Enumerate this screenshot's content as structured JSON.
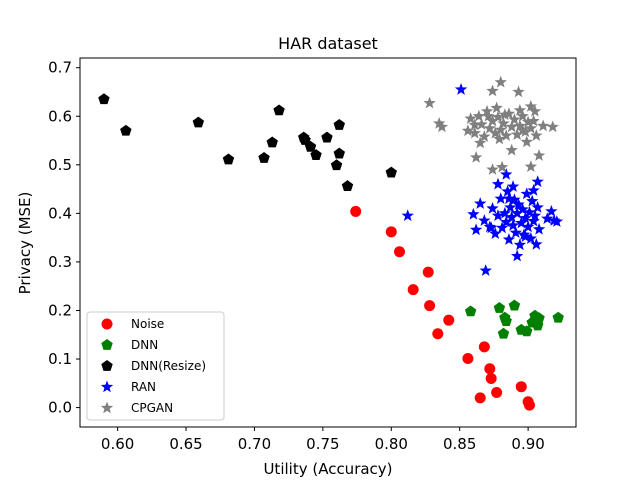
{
  "chart_data": {
    "type": "scatter",
    "title": "HAR dataset",
    "xlabel": "Utility (Accuracy)",
    "ylabel": "Privacy (MSE)",
    "xlim": [
      0.5725,
      0.935
    ],
    "ylim": [
      -0.04,
      0.72
    ],
    "xticks": [
      "0.60",
      "0.65",
      "0.70",
      "0.75",
      "0.80",
      "0.85",
      "0.90"
    ],
    "xtick_values": [
      0.6,
      0.65,
      0.7,
      0.75,
      0.8,
      0.85,
      0.9
    ],
    "yticks": [
      "0.0",
      "0.1",
      "0.2",
      "0.3",
      "0.4",
      "0.5",
      "0.6",
      "0.7"
    ],
    "ytick_values": [
      0.0,
      0.1,
      0.2,
      0.3,
      0.4,
      0.5,
      0.6,
      0.7
    ],
    "grid": false,
    "legend_position": "lower-left",
    "series": [
      {
        "name": "Noise",
        "marker": "circle",
        "color": "#ff0000",
        "points": [
          [
            0.774,
            0.404
          ],
          [
            0.8,
            0.362
          ],
          [
            0.806,
            0.321
          ],
          [
            0.816,
            0.243
          ],
          [
            0.827,
            0.279
          ],
          [
            0.828,
            0.21
          ],
          [
            0.834,
            0.152
          ],
          [
            0.842,
            0.18
          ],
          [
            0.856,
            0.101
          ],
          [
            0.865,
            0.02
          ],
          [
            0.868,
            0.125
          ],
          [
            0.872,
            0.08
          ],
          [
            0.873,
            0.06
          ],
          [
            0.877,
            0.031
          ],
          [
            0.895,
            0.043
          ],
          [
            0.9,
            0.012
          ],
          [
            0.901,
            0.005
          ]
        ]
      },
      {
        "name": "DNN",
        "marker": "pentagon",
        "color": "#008000",
        "points": [
          [
            0.858,
            0.198
          ],
          [
            0.879,
            0.205
          ],
          [
            0.883,
            0.185
          ],
          [
            0.884,
            0.178
          ],
          [
            0.882,
            0.152
          ],
          [
            0.89,
            0.21
          ],
          [
            0.895,
            0.16
          ],
          [
            0.899,
            0.157
          ],
          [
            0.903,
            0.175
          ],
          [
            0.905,
            0.189
          ],
          [
            0.907,
            0.169
          ],
          [
            0.908,
            0.184
          ],
          [
            0.922,
            0.185
          ],
          [
            0.905,
            0.18
          ]
        ]
      },
      {
        "name": "DNN(Resize)",
        "marker": "pentagon",
        "color": "#000000",
        "points": [
          [
            0.59,
            0.635
          ],
          [
            0.606,
            0.57
          ],
          [
            0.659,
            0.587
          ],
          [
            0.681,
            0.511
          ],
          [
            0.707,
            0.514
          ],
          [
            0.713,
            0.546
          ],
          [
            0.718,
            0.612
          ],
          [
            0.736,
            0.556
          ],
          [
            0.737,
            0.551
          ],
          [
            0.741,
            0.537
          ],
          [
            0.745,
            0.52
          ],
          [
            0.753,
            0.556
          ],
          [
            0.76,
            0.499
          ],
          [
            0.762,
            0.582
          ],
          [
            0.762,
            0.523
          ],
          [
            0.768,
            0.456
          ],
          [
            0.8,
            0.484
          ]
        ]
      },
      {
        "name": "RAN",
        "marker": "star",
        "color": "#0000ff",
        "points": [
          [
            0.851,
            0.655
          ],
          [
            0.812,
            0.395
          ],
          [
            0.869,
            0.282
          ],
          [
            0.86,
            0.398
          ],
          [
            0.862,
            0.366
          ],
          [
            0.865,
            0.42
          ],
          [
            0.868,
            0.385
          ],
          [
            0.872,
            0.372
          ],
          [
            0.874,
            0.41
          ],
          [
            0.876,
            0.358
          ],
          [
            0.878,
            0.395
          ],
          [
            0.88,
            0.43
          ],
          [
            0.881,
            0.37
          ],
          [
            0.883,
            0.4
          ],
          [
            0.884,
            0.382
          ],
          [
            0.885,
            0.445
          ],
          [
            0.886,
            0.346
          ],
          [
            0.887,
            0.412
          ],
          [
            0.888,
            0.392
          ],
          [
            0.889,
            0.375
          ],
          [
            0.89,
            0.428
          ],
          [
            0.891,
            0.36
          ],
          [
            0.892,
            0.4
          ],
          [
            0.893,
            0.418
          ],
          [
            0.894,
            0.335
          ],
          [
            0.895,
            0.38
          ],
          [
            0.896,
            0.408
          ],
          [
            0.897,
            0.356
          ],
          [
            0.898,
            0.39
          ],
          [
            0.899,
            0.44
          ],
          [
            0.9,
            0.372
          ],
          [
            0.901,
            0.402
          ],
          [
            0.902,
            0.348
          ],
          [
            0.903,
            0.425
          ],
          [
            0.904,
            0.384
          ],
          [
            0.905,
            0.395
          ],
          [
            0.906,
            0.336
          ],
          [
            0.907,
            0.412
          ],
          [
            0.908,
            0.367
          ],
          [
            0.892,
            0.312
          ],
          [
            0.889,
            0.455
          ],
          [
            0.904,
            0.447
          ],
          [
            0.907,
            0.465
          ],
          [
            0.884,
            0.48
          ],
          [
            0.878,
            0.46
          ],
          [
            0.917,
            0.404
          ],
          [
            0.921,
            0.383
          ],
          [
            0.919,
            0.385
          ],
          [
            0.914,
            0.389
          ],
          [
            0.898,
            0.352
          ],
          [
            0.873,
            0.37
          ],
          [
            0.886,
            0.43
          ]
        ]
      },
      {
        "name": "CPGAN",
        "marker": "star",
        "color": "#808080",
        "points": [
          [
            0.828,
            0.627
          ],
          [
            0.835,
            0.585
          ],
          [
            0.837,
            0.578
          ],
          [
            0.862,
            0.515
          ],
          [
            0.874,
            0.49
          ],
          [
            0.88,
            0.67
          ],
          [
            0.874,
            0.652
          ],
          [
            0.893,
            0.65
          ],
          [
            0.902,
            0.62
          ],
          [
            0.905,
            0.61
          ],
          [
            0.856,
            0.57
          ],
          [
            0.858,
            0.595
          ],
          [
            0.861,
            0.565
          ],
          [
            0.864,
            0.6
          ],
          [
            0.866,
            0.583
          ],
          [
            0.868,
            0.558
          ],
          [
            0.87,
            0.61
          ],
          [
            0.872,
            0.575
          ],
          [
            0.874,
            0.59
          ],
          [
            0.876,
            0.565
          ],
          [
            0.878,
            0.598
          ],
          [
            0.88,
            0.572
          ],
          [
            0.882,
            0.585
          ],
          [
            0.884,
            0.56
          ],
          [
            0.886,
            0.605
          ],
          [
            0.888,
            0.578
          ],
          [
            0.89,
            0.593
          ],
          [
            0.892,
            0.562
          ],
          [
            0.894,
            0.58
          ],
          [
            0.896,
            0.6
          ],
          [
            0.898,
            0.568
          ],
          [
            0.9,
            0.588
          ],
          [
            0.902,
            0.575
          ],
          [
            0.904,
            0.59
          ],
          [
            0.906,
            0.56
          ],
          [
            0.879,
            0.553
          ],
          [
            0.888,
            0.53
          ],
          [
            0.899,
            0.547
          ],
          [
            0.865,
            0.545
          ],
          [
            0.911,
            0.58
          ],
          [
            0.918,
            0.578
          ],
          [
            0.908,
            0.519
          ],
          [
            0.902,
            0.496
          ],
          [
            0.881,
            0.495
          ],
          [
            0.871,
            0.6
          ],
          [
            0.877,
            0.617
          ],
          [
            0.894,
            0.612
          ],
          [
            0.883,
            0.603
          ],
          [
            0.896,
            0.571
          ],
          [
            0.861,
            0.582
          ]
        ]
      }
    ]
  }
}
